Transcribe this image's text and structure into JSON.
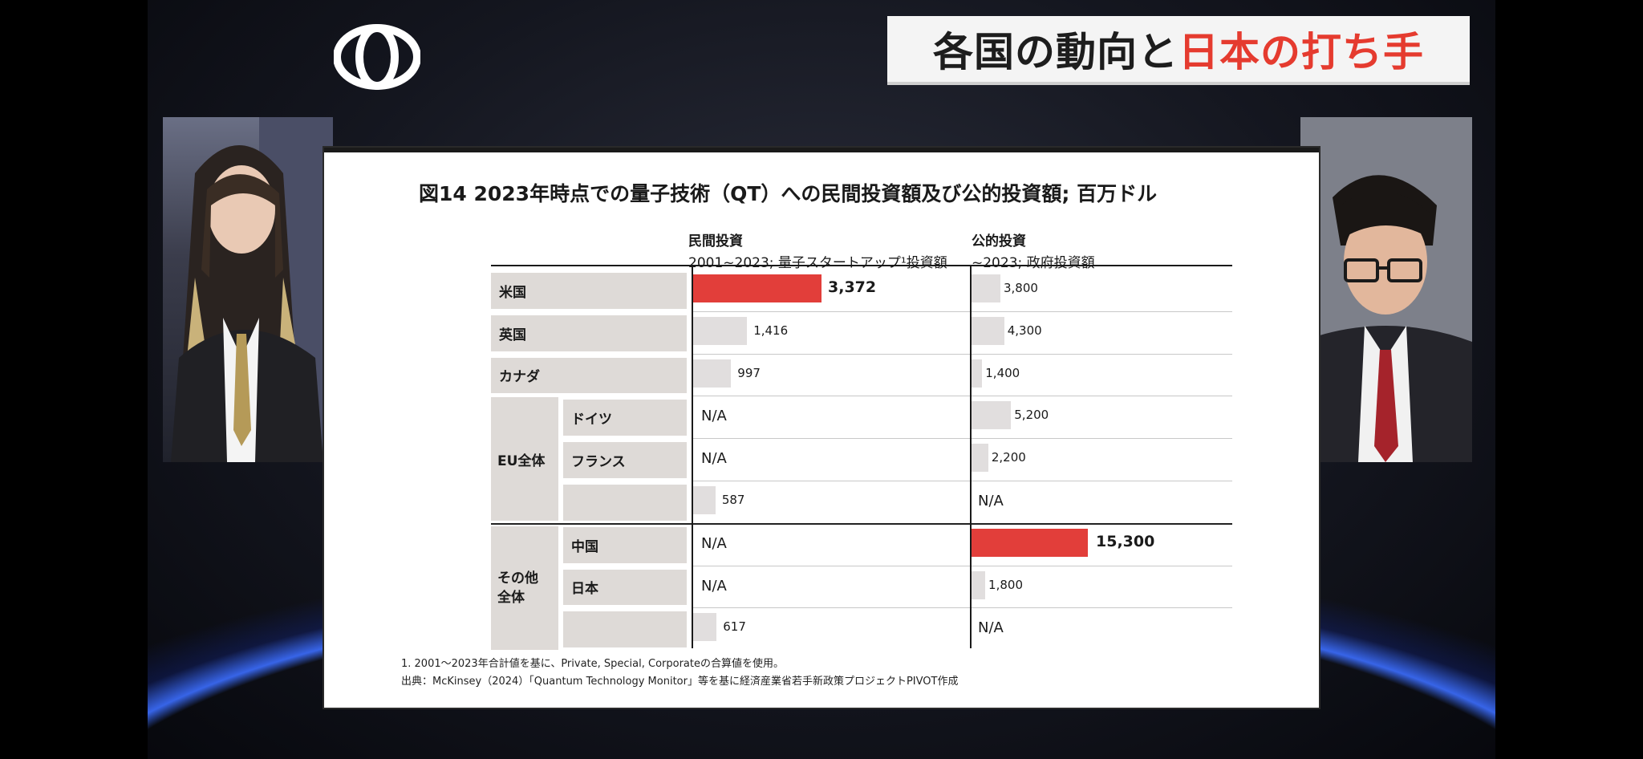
{
  "header": {
    "title_dark": "各国の動向と",
    "title_red": "日本の打ち手",
    "accent_color": "#e53b2f",
    "logo_icon": "double-ring-logo"
  },
  "slide": {
    "title": "図14 2023年時点での量子技術（QT）への民間投資額及び公的投資額; 百万ドル",
    "columns": {
      "private": {
        "heading": "民間投資",
        "subheading": "2001~2023; 量子スタートアップ¹投資額"
      },
      "public": {
        "heading": "公的投資",
        "subheading": "~2023; 政府投資額"
      }
    },
    "groups": {
      "eu": "EU全体",
      "other": "その他\n全体"
    },
    "rows": [
      {
        "label": "米国",
        "private": "3,372",
        "public": "3,800",
        "private_value": 3372,
        "public_value": 3800
      },
      {
        "label": "英国",
        "private": "1,416",
        "public": "4,300",
        "private_value": 1416,
        "public_value": 4300
      },
      {
        "label": "カナダ",
        "private": "997",
        "public": "1,400",
        "private_value": 997,
        "public_value": 1400
      },
      {
        "label": "ドイツ",
        "private": "N/A",
        "public": "5,200",
        "private_value": null,
        "public_value": 5200
      },
      {
        "label": "フランス",
        "private": "N/A",
        "public": "2,200",
        "private_value": null,
        "public_value": 2200
      },
      {
        "label": "",
        "private": "587",
        "public": "N/A",
        "private_value": 587,
        "public_value": null
      },
      {
        "label": "中国",
        "private": "N/A",
        "public": "15,300",
        "private_value": null,
        "public_value": 15300
      },
      {
        "label": "日本",
        "private": "N/A",
        "public": "1,800",
        "private_value": null,
        "public_value": 1800
      },
      {
        "label": "",
        "private": "617",
        "public": "N/A",
        "private_value": 617,
        "public_value": null
      }
    ],
    "footnote": "1. 2001～2023年合計値を基に、Private, Special, Corporateの合算値を使用。",
    "source": "出典：McKinsey（2024）「Quantum Technology Monitor」等を基に経済産業省若手新政策プロジェクトPIVOT作成",
    "highlight_color": "#e23e3a",
    "bar_color": "#e1dede"
  },
  "chart_data": {
    "type": "bar",
    "title": "図14 2023年時点での量子技術（QT）への民間投資額及び公的投資額; 百万ドル",
    "categories": [
      "米国",
      "英国",
      "カナダ",
      "ドイツ",
      "フランス",
      "EU全体",
      "中国",
      "日本",
      "その他全体"
    ],
    "series": [
      {
        "name": "民間投資",
        "values": [
          3372,
          1416,
          997,
          null,
          null,
          587,
          null,
          null,
          617
        ]
      },
      {
        "name": "公的投資",
        "values": [
          3800,
          4300,
          1400,
          5200,
          2200,
          null,
          15300,
          1800,
          null
        ]
      }
    ]
  }
}
